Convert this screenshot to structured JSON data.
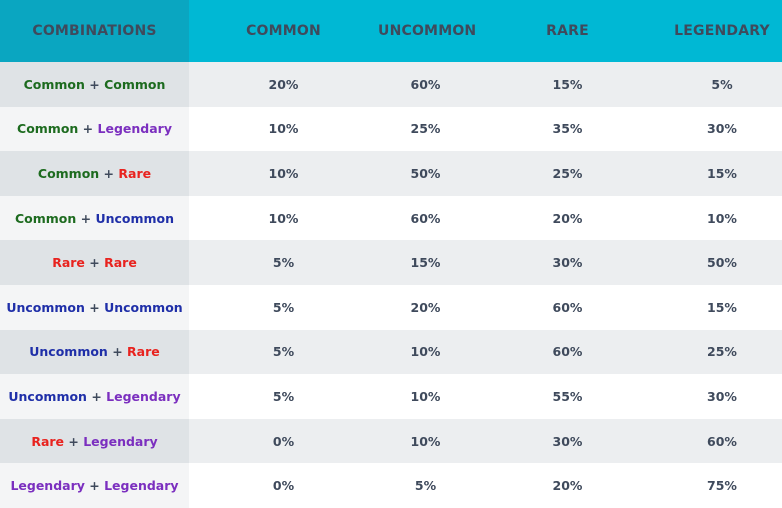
{
  "header": {
    "combinations": "COMBINATIONS",
    "common": "COMMON",
    "uncommon": "UNCOMMON",
    "rare": "RARE",
    "legendary": "LEGENDARY"
  },
  "rarity_colors": {
    "Common": "#1d6b1f",
    "Uncommon": "#1f2fa8",
    "Rare": "#e8231f",
    "Legendary": "#7b2fbf"
  },
  "rows": [
    {
      "a": "Common",
      "b": "Common",
      "common": "20%",
      "uncommon": "60%",
      "rare": "15%",
      "legendary": "5%"
    },
    {
      "a": "Common",
      "b": "Legendary",
      "common": "10%",
      "uncommon": "25%",
      "rare": "35%",
      "legendary": "30%"
    },
    {
      "a": "Common",
      "b": "Rare",
      "common": "10%",
      "uncommon": "50%",
      "rare": "25%",
      "legendary": "15%"
    },
    {
      "a": "Common",
      "b": "Uncommon",
      "common": "10%",
      "uncommon": "60%",
      "rare": "20%",
      "legendary": "10%"
    },
    {
      "a": "Rare",
      "b": "Rare",
      "common": "5%",
      "uncommon": "15%",
      "rare": "30%",
      "legendary": "50%"
    },
    {
      "a": "Uncommon",
      "b": "Uncommon",
      "common": "5%",
      "uncommon": "20%",
      "rare": "60%",
      "legendary": "15%"
    },
    {
      "a": "Uncommon",
      "b": "Rare",
      "common": "5%",
      "uncommon": "10%",
      "rare": "60%",
      "legendary": "25%"
    },
    {
      "a": "Uncommon",
      "b": "Legendary",
      "common": "5%",
      "uncommon": "10%",
      "rare": "55%",
      "legendary": "30%"
    },
    {
      "a": "Rare",
      "b": "Legendary",
      "common": "0%",
      "uncommon": "10%",
      "rare": "30%",
      "legendary": "60%"
    },
    {
      "a": "Legendary",
      "b": "Legendary",
      "common": "0%",
      "uncommon": "5%",
      "rare": "20%",
      "legendary": "75%"
    }
  ]
}
